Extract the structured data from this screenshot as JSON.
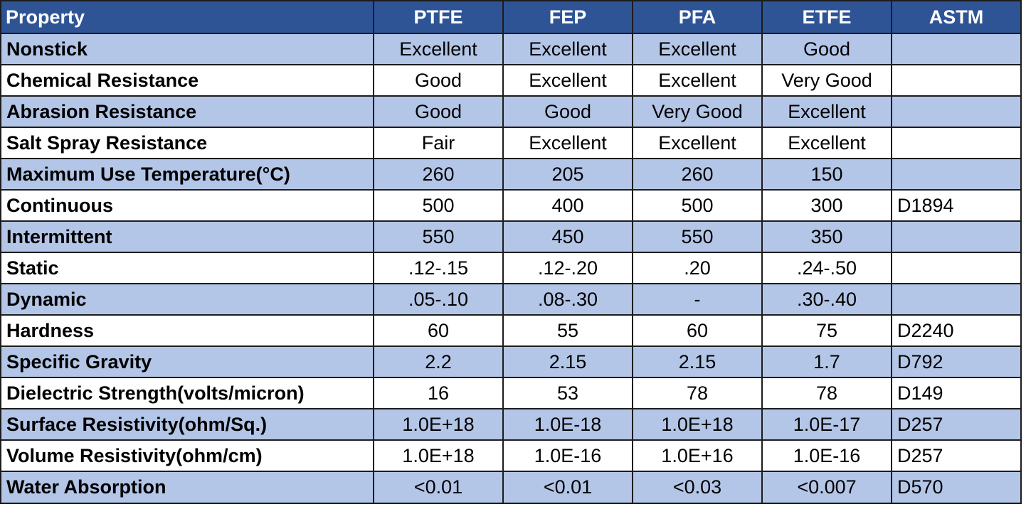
{
  "table": {
    "headers": [
      "Property",
      "PTFE",
      "FEP",
      "PFA",
      "ETFE",
      "ASTM"
    ],
    "rows": [
      [
        "Nonstick",
        "Excellent",
        "Excellent",
        "Excellent",
        "Good",
        ""
      ],
      [
        "Chemical Resistance",
        "Good",
        "Excellent",
        "Excellent",
        "Very Good",
        ""
      ],
      [
        "Abrasion Resistance",
        "Good",
        "Good",
        "Very Good",
        "Excellent",
        ""
      ],
      [
        "Salt Spray Resistance",
        "Fair",
        "Excellent",
        "Excellent",
        "Excellent",
        ""
      ],
      [
        "Maximum Use Temperature(°C)",
        "260",
        "205",
        "260",
        "150",
        ""
      ],
      [
        "Continuous",
        "500",
        "400",
        "500",
        "300",
        "D1894"
      ],
      [
        "Intermittent",
        "550",
        "450",
        "550",
        "350",
        ""
      ],
      [
        "Static",
        ".12-.15",
        ".12-.20",
        ".20",
        ".24-.50",
        ""
      ],
      [
        "Dynamic",
        ".05-.10",
        ".08-.30",
        "-",
        ".30-.40",
        ""
      ],
      [
        "Hardness",
        "60",
        "55",
        "60",
        "75",
        "D2240"
      ],
      [
        "Specific Gravity",
        "2.2",
        "2.15",
        "2.15",
        "1.7",
        "D792"
      ],
      [
        "Dielectric Strength(volts/micron)",
        "16",
        "53",
        "78",
        "78",
        "D149"
      ],
      [
        "Surface Resistivity(ohm/Sq.)",
        "1.0E+18",
        "1.0E-18",
        "1.0E+18",
        "1.0E-17",
        "D257"
      ],
      [
        "Volume Resistivity(ohm/cm)",
        "1.0E+18",
        "1.0E-16",
        "1.0E+16",
        "1.0E-16",
        "D257"
      ],
      [
        "Water Absorption",
        "<0.01",
        "<0.01",
        "<0.03",
        "<0.007",
        "D570"
      ]
    ]
  },
  "colors": {
    "header_bg": "#2f5496",
    "header_text": "#ffffff",
    "band_bg": "#b4c6e7",
    "plain_bg": "#ffffff",
    "border": "#1c1c1c"
  }
}
